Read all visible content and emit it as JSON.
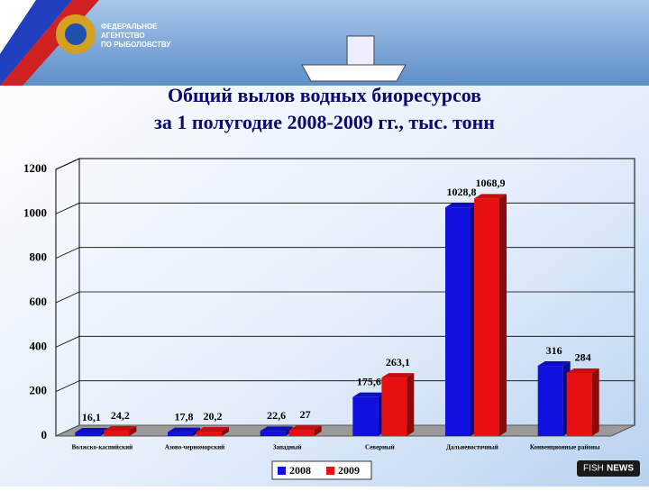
{
  "header": {
    "agency": [
      "ФЕДЕРАЛЬНОЕ",
      "АГЕНТСТВО",
      "ПО РЫБОЛОВСТВУ"
    ]
  },
  "chart_data": {
    "type": "bar3d",
    "title": [
      "Общий вылов водных биоресурсов",
      "за 1 полугодие 2008-2009 гг., тыс. тонн"
    ],
    "categories": [
      "Волжско-каспийский",
      "Азово-черноморский",
      "Западный",
      "Северный",
      "Дальневосточный",
      "Конвенционные районы"
    ],
    "series": [
      {
        "name": "2008",
        "color": "#1010e0",
        "values": [
          16.1,
          17.8,
          22.6,
          175.6,
          1028.8,
          316
        ],
        "value_labels": [
          "16,1",
          "17,8",
          "22,6",
          "175,6",
          "1028,8",
          "316"
        ]
      },
      {
        "name": "2009",
        "color": "#e81010",
        "values": [
          24.2,
          20.2,
          27,
          263.1,
          1068.9,
          284
        ],
        "value_labels": [
          "24,2",
          "20,2",
          "27",
          "263,1",
          "1068,9",
          "284"
        ]
      }
    ],
    "ylim": [
      0,
      1200
    ],
    "yticks": [
      0,
      200,
      400,
      600,
      800,
      1000,
      1200
    ],
    "grid": true,
    "legend": "bottom"
  },
  "footer_logo": [
    "FISH",
    "NEWS"
  ]
}
